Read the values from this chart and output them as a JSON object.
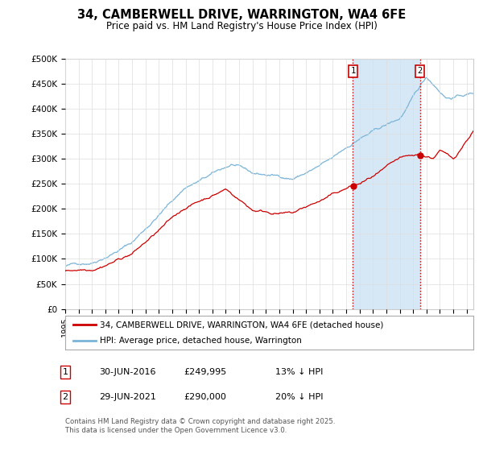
{
  "title": "34, CAMBERWELL DRIVE, WARRINGTON, WA4 6FE",
  "subtitle": "Price paid vs. HM Land Registry's House Price Index (HPI)",
  "ylabel_ticks": [
    "£0",
    "£50K",
    "£100K",
    "£150K",
    "£200K",
    "£250K",
    "£300K",
    "£350K",
    "£400K",
    "£450K",
    "£500K"
  ],
  "ylim": [
    0,
    500000
  ],
  "xlim_start": 1995.0,
  "xlim_end": 2025.5,
  "hpi_color": "#7ab4d8",
  "price_color": "#cc0000",
  "vline_color": "#cc0000",
  "shade_color": "#d6e8f5",
  "marker1_x": 2016.5,
  "marker2_x": 2021.5,
  "marker1_label": "1",
  "marker2_label": "2",
  "legend_label1": "34, CAMBERWELL DRIVE, WARRINGTON, WA4 6FE (detached house)",
  "legend_label2": "HPI: Average price, detached house, Warrington",
  "table_row1": [
    "1",
    "30-JUN-2016",
    "£249,995",
    "13% ↓ HPI"
  ],
  "table_row2": [
    "2",
    "29-JUN-2021",
    "£290,000",
    "20% ↓ HPI"
  ],
  "footer": "Contains HM Land Registry data © Crown copyright and database right 2025.\nThis data is licensed under the Open Government Licence v3.0.",
  "background_color": "#ffffff",
  "grid_color": "#dddddd"
}
